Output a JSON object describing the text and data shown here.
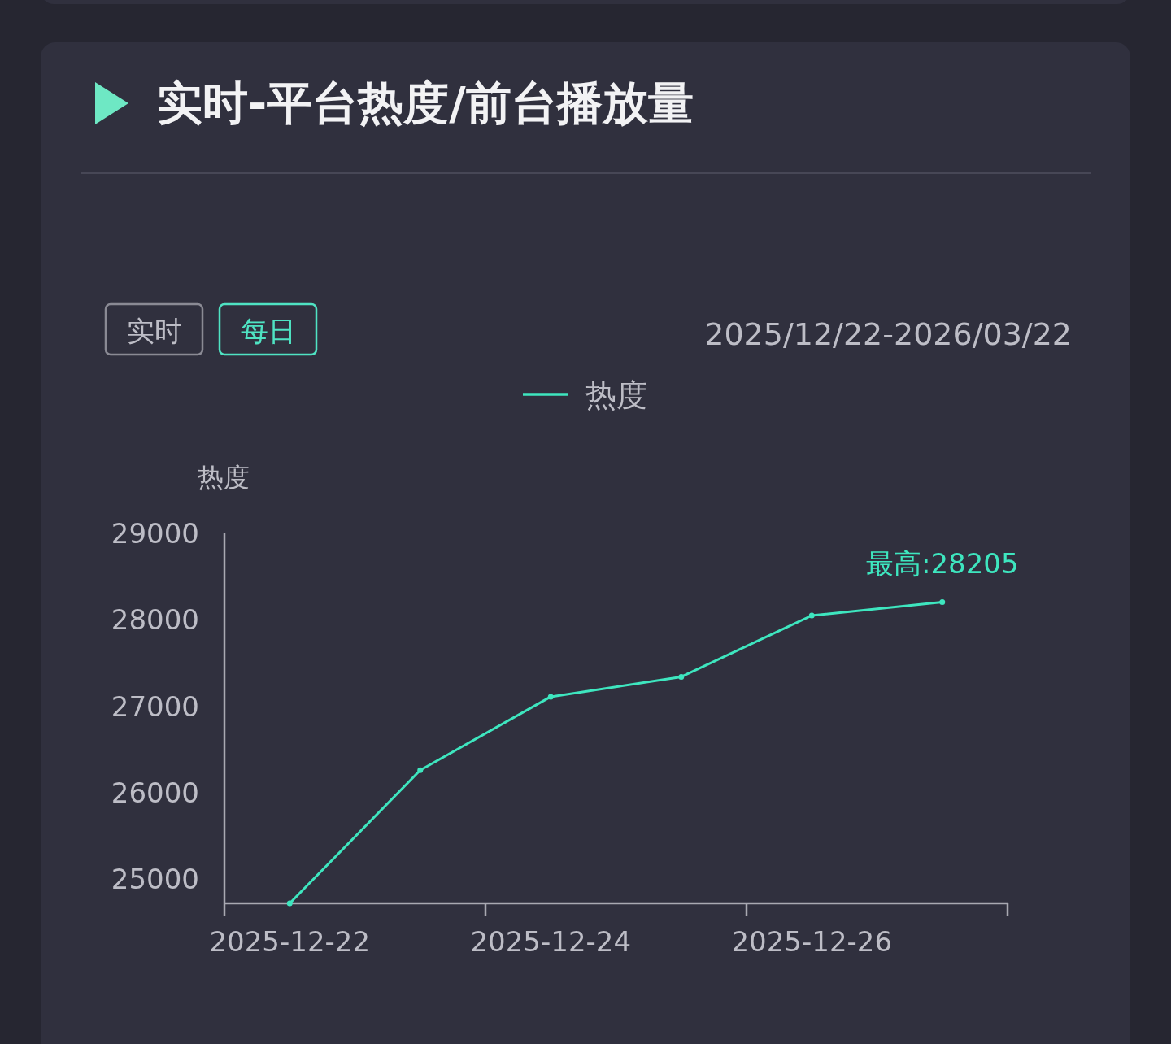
{
  "chart_data": {
    "type": "line",
    "title": "实时-平台热度/前台播放量",
    "ylabel": "热度",
    "categories": [
      "2025-12-22",
      null,
      "2025-12-24",
      null,
      "2025-12-26",
      null
    ],
    "series": [
      {
        "name": "热度",
        "color": "#3ee6bf",
        "values": [
          24720,
          26260,
          27110,
          27340,
          28050,
          28205
        ]
      }
    ],
    "ylim": [
      24720,
      29000
    ],
    "yticks": [
      25000,
      26000,
      27000,
      28000,
      29000
    ],
    "grid": false,
    "legend": "top",
    "marker": "circle",
    "line_style": "solid",
    "annotations": [
      {
        "text": "最高:28205",
        "y": 28205
      },
      "实时",
      "每日",
      "2025/12/22-2026/03/22"
    ]
  }
}
